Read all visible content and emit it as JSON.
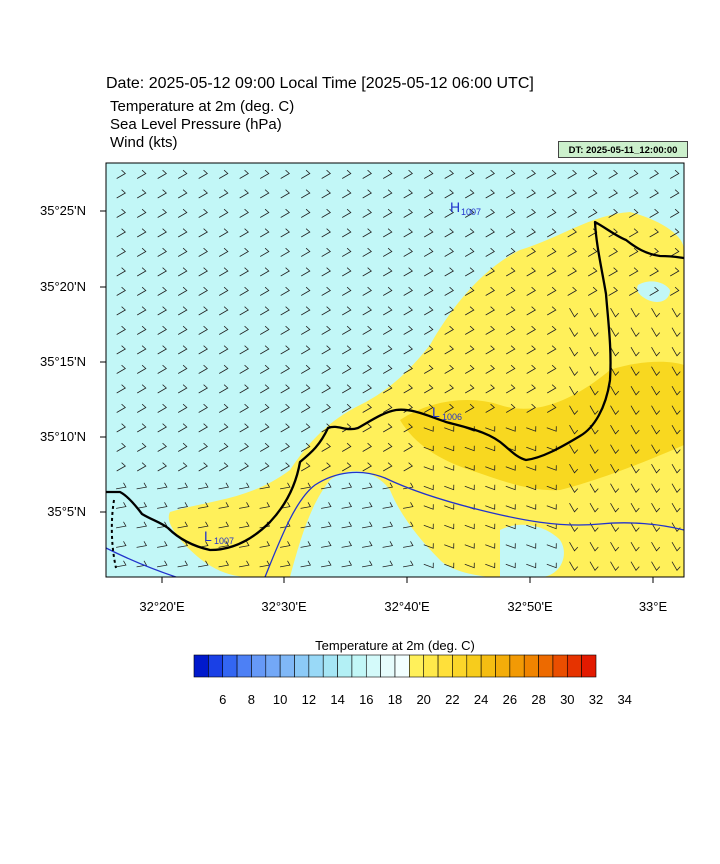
{
  "header": {
    "date_line": "Date: 2025-05-12  09:00 Local Time [2025-05-12  06:00 UTC]",
    "fields": [
      "Temperature at 2m   (deg. C)",
      "Sea Level Pressure   (hPa)",
      "Wind   (kts)"
    ],
    "dt_label": "DT: 2025-05-11_12:00:00"
  },
  "map": {
    "lat_labels": [
      "35°25'N",
      "35°20'N",
      "35°15'N",
      "35°10'N",
      "35°5'N"
    ],
    "lon_labels": [
      "32°20'E",
      "32°30'E",
      "32°40'E",
      "32°50'E",
      "33°E"
    ],
    "pressure_centers": [
      {
        "type": "H",
        "value": "1007"
      },
      {
        "type": "L",
        "value": "1006"
      },
      {
        "type": "L",
        "value": "1007"
      }
    ],
    "colors": {
      "sea_temp": "#c2f7f7",
      "warm": "#fff05a",
      "warmer": "#f7d519",
      "isobar": "#2233cc",
      "coast": "#000000"
    }
  },
  "colorbar": {
    "title": "Temperature at 2m  (deg. C)",
    "labels": [
      "6",
      "8",
      "10",
      "12",
      "14",
      "16",
      "18",
      "20",
      "22",
      "24",
      "26",
      "28",
      "30",
      "32",
      "34"
    ],
    "colors": [
      "#0019cc",
      "#1a40e6",
      "#3366f2",
      "#4d80f5",
      "#6699f7",
      "#73a8f7",
      "#80b8f7",
      "#8ccaf7",
      "#99d9f7",
      "#a6e6f5",
      "#b3f0f5",
      "#c2f7f7",
      "#d4fafa",
      "#e6fcfc",
      "#f2ffff",
      "#fff05a",
      "#ffe94a",
      "#ffe03a",
      "#fbd62a",
      "#f7cc1c",
      "#f5bd12",
      "#f3ad0a",
      "#f29a05",
      "#f08400",
      "#ed6a00",
      "#ea4e00",
      "#e63300",
      "#e31a00"
    ]
  }
}
